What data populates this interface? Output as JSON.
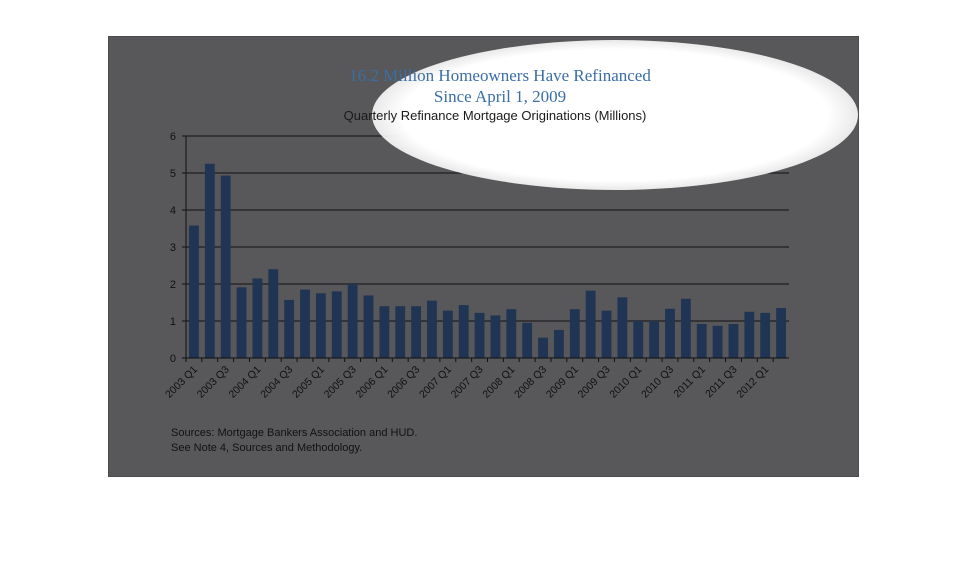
{
  "chart_data": {
    "type": "bar",
    "title_line1": "16.2 Million Homeowners Have Refinanced",
    "title_line2": "Since April 1, 2009",
    "subtitle": "Quarterly Refinance Mortgage Originations (Millions)",
    "ylim": [
      0,
      6
    ],
    "yticks": [
      0,
      1,
      2,
      3,
      4,
      5,
      6
    ],
    "grid": true,
    "bar_color": "#1f3553",
    "categories": [
      "2003 Q1",
      "2003 Q2",
      "2003 Q3",
      "2003 Q4",
      "2004 Q1",
      "2004 Q2",
      "2004 Q3",
      "2004 Q4",
      "2005 Q1",
      "2005 Q2",
      "2005 Q3",
      "2005 Q4",
      "2006 Q1",
      "2006 Q2",
      "2006 Q3",
      "2006 Q4",
      "2007 Q1",
      "2007 Q2",
      "2007 Q3",
      "2007 Q4",
      "2008 Q1",
      "2008 Q2",
      "2008 Q3",
      "2008 Q4",
      "2009 Q1",
      "2009 Q2",
      "2009 Q3",
      "2009 Q4",
      "2010 Q1",
      "2010 Q2",
      "2010 Q3",
      "2010 Q4",
      "2011 Q1",
      "2011 Q2",
      "2011 Q3",
      "2011 Q4",
      "2012 Q1",
      "2012 Q2"
    ],
    "xtick_labels": [
      "2003 Q1",
      "2003 Q3",
      "2004 Q1",
      "2004 Q3",
      "2005 Q1",
      "2005 Q3",
      "2006 Q1",
      "2006 Q3",
      "2007 Q1",
      "2007 Q3",
      "2008 Q1",
      "2008 Q3",
      "2009 Q1",
      "2009 Q3",
      "2010 Q1",
      "2010 Q3",
      "2011 Q1",
      "2011 Q3",
      "2012 Q1"
    ],
    "values": [
      3.58,
      5.25,
      4.93,
      1.91,
      2.15,
      2.4,
      1.57,
      1.85,
      1.75,
      1.8,
      2.0,
      1.69,
      1.4,
      1.4,
      1.4,
      1.55,
      1.28,
      1.43,
      1.22,
      1.15,
      1.32,
      0.95,
      0.55,
      0.76,
      1.32,
      1.82,
      1.28,
      1.64,
      1.0,
      1.0,
      1.33,
      1.6,
      0.92,
      0.87,
      0.92,
      1.25,
      1.22,
      1.35
    ]
  },
  "footer": {
    "sources_line1": "Sources:  Mortgage Bankers Association and HUD.",
    "sources_line2": "See Note 4, Sources and Methodology."
  }
}
